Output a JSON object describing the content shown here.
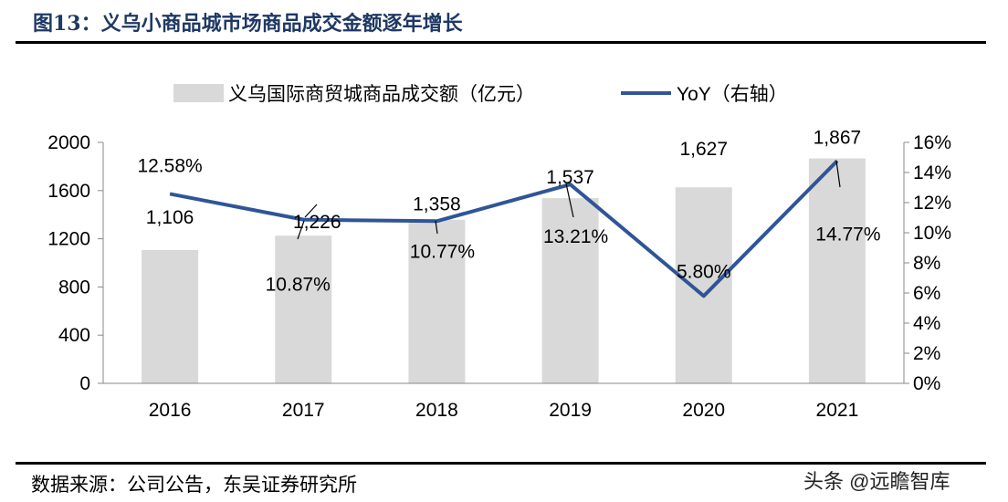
{
  "title": "图13：义乌小商品城市场商品成交金额逐年增长",
  "source": "数据来源：公司公告，东吴证券研究所",
  "watermark": "头条 @远瞻智库",
  "chart_data": {
    "type": "bar+line",
    "categories": [
      "2016",
      "2017",
      "2018",
      "2019",
      "2020",
      "2021"
    ],
    "series": [
      {
        "name": "义乌国际商贸城商品成交额（亿元）",
        "type": "bar",
        "axis": "left",
        "values": [
          1106,
          1226,
          1358,
          1537,
          1627,
          1867
        ],
        "labels": [
          "1,106",
          "1,226",
          "1,358",
          "1,537",
          "1,627",
          "1,867"
        ],
        "color": "#d9d9d9"
      },
      {
        "name": "YoY（右轴）",
        "type": "line",
        "axis": "right",
        "values": [
          12.58,
          10.87,
          10.77,
          13.21,
          5.8,
          14.77
        ],
        "labels": [
          "12.58%",
          "10.87%",
          "10.77%",
          "13.21%",
          "5.80%",
          "14.77%"
        ],
        "color": "#2f5597"
      }
    ],
    "left_axis": {
      "range": [
        0,
        2000
      ],
      "ticks": [
        "0",
        "400",
        "800",
        "1200",
        "1600",
        "2000"
      ]
    },
    "right_axis": {
      "range": [
        0,
        16
      ],
      "ticks": [
        "0%",
        "2%",
        "4%",
        "6%",
        "8%",
        "10%",
        "12%",
        "14%",
        "16%"
      ]
    },
    "legend": "top",
    "grid": false
  }
}
